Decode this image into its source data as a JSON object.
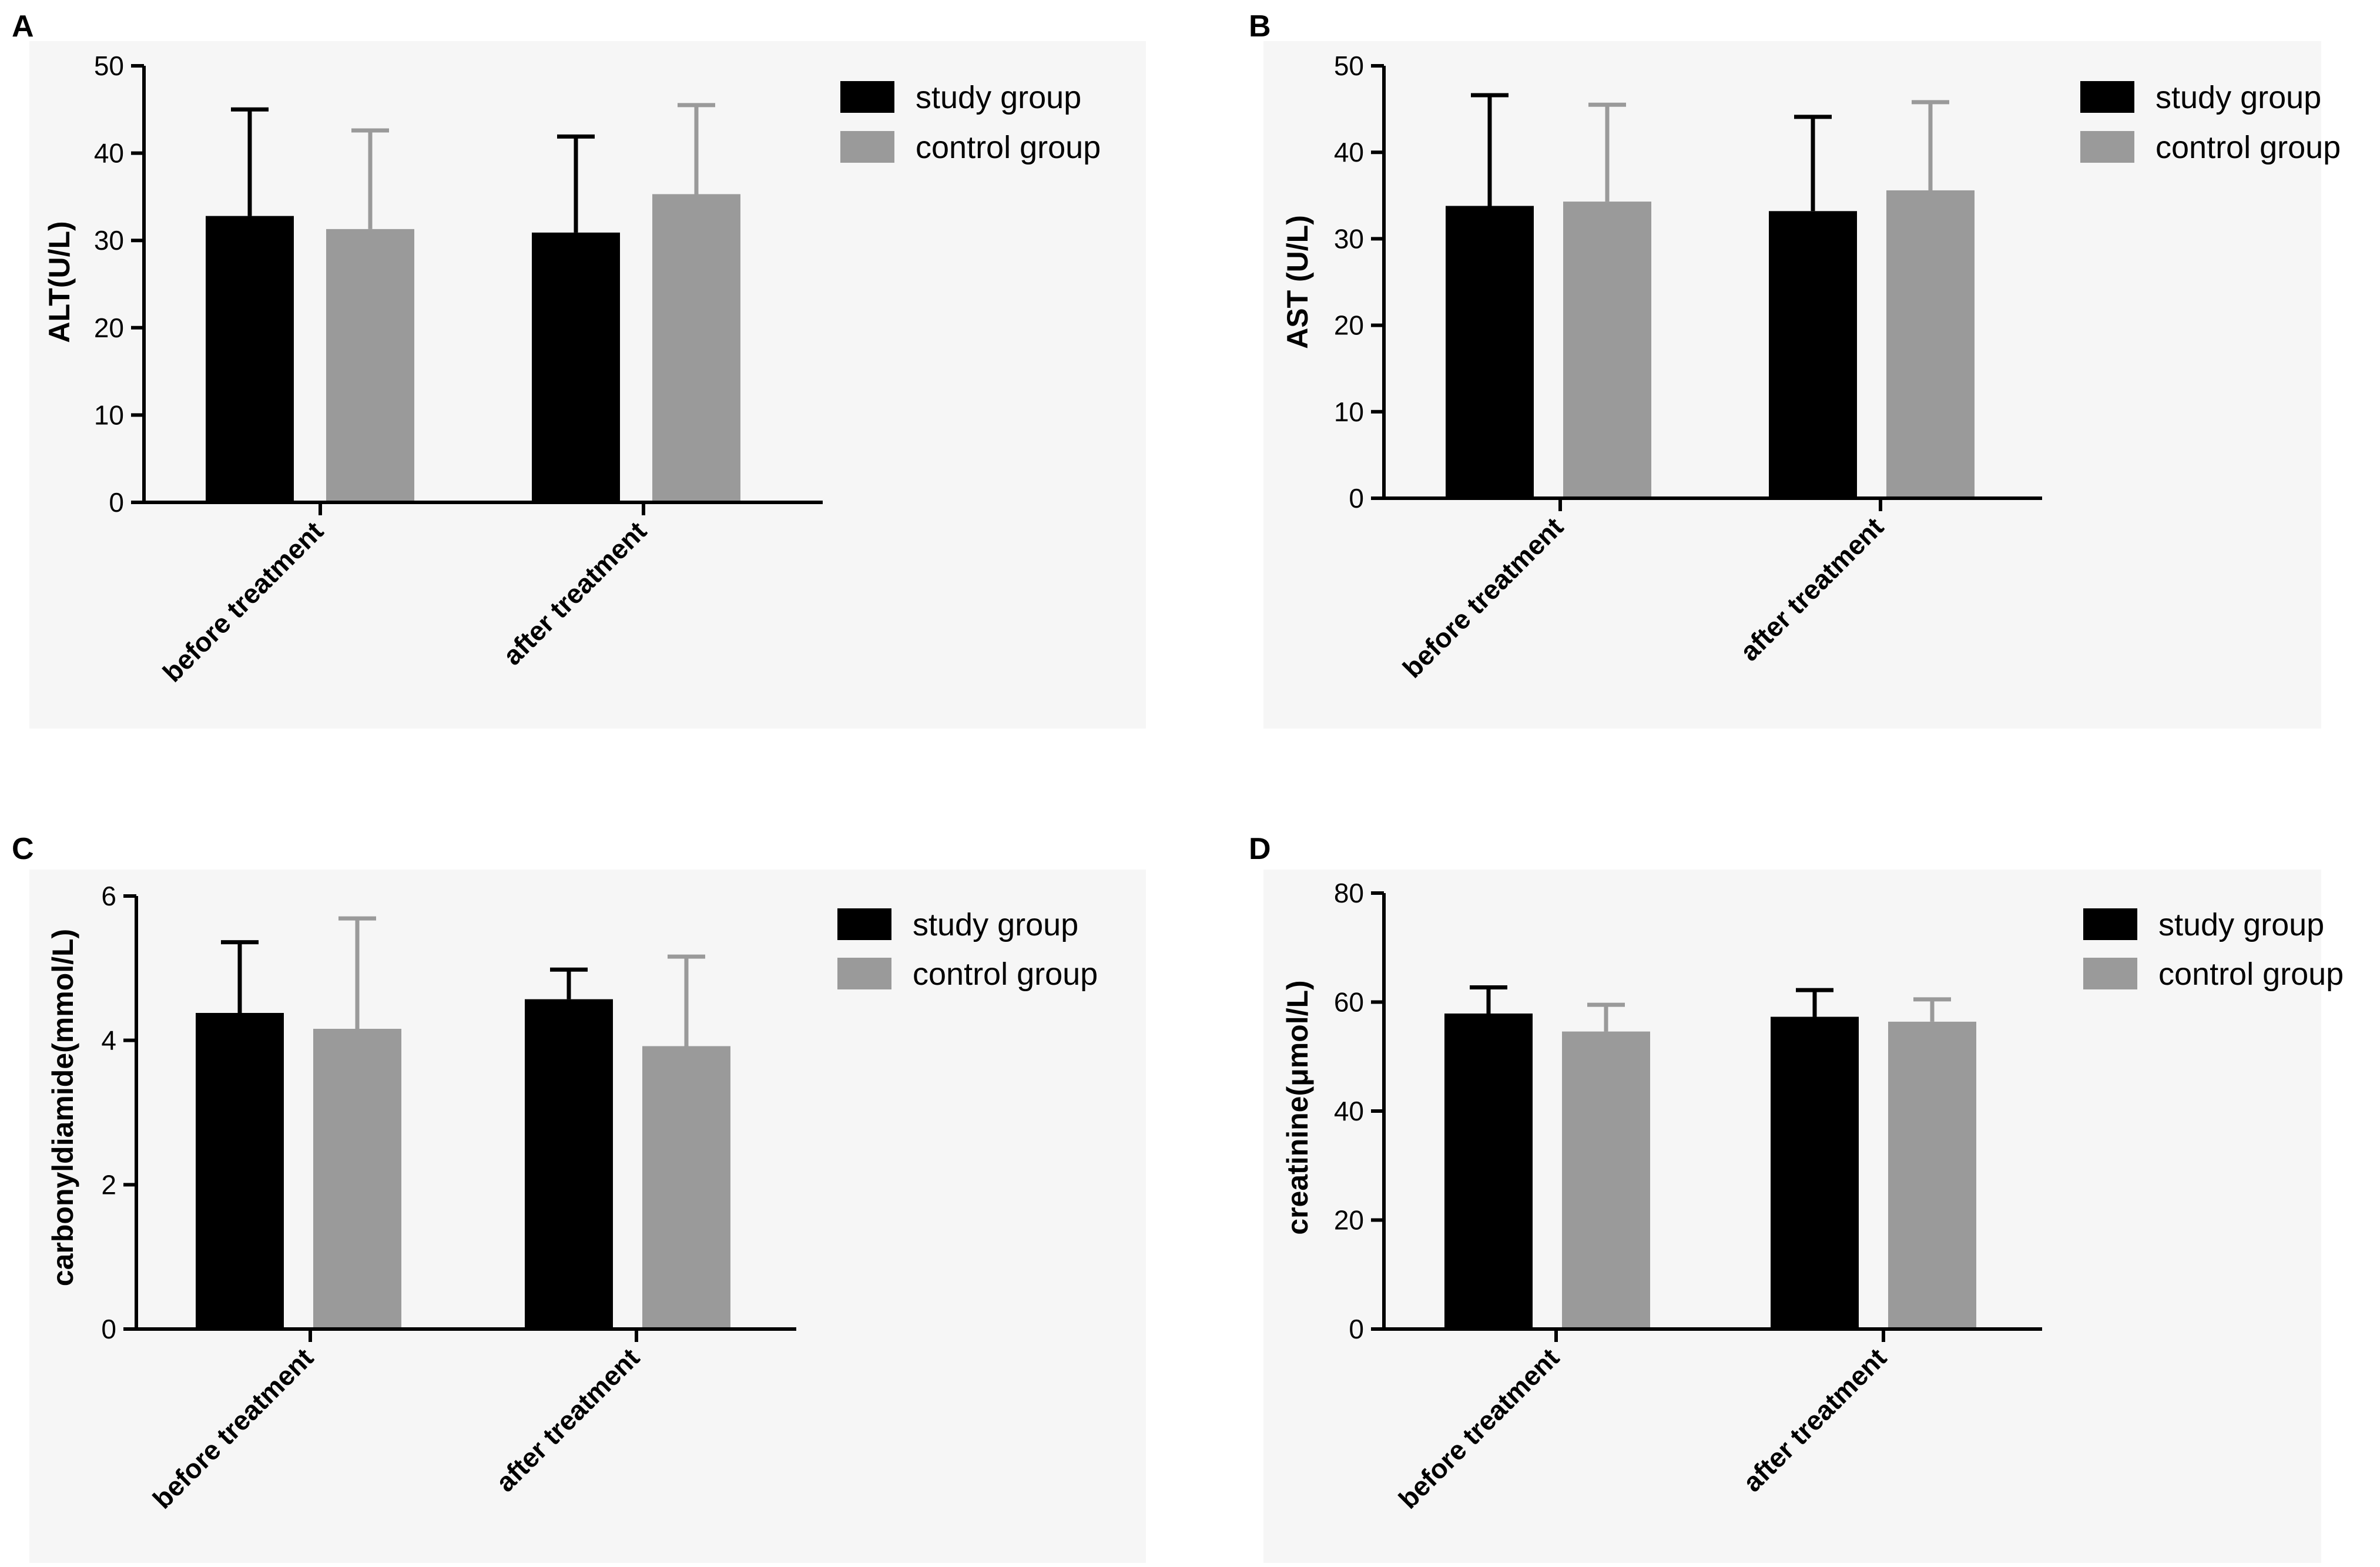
{
  "colors": {
    "study": "#000000",
    "control": "#9a9a9a",
    "axis": "#000000",
    "panel_bg": "#f6f6f6"
  },
  "chart_data": [
    {
      "panel": "A",
      "type": "bar",
      "categories": [
        "before treatment",
        "after treatment"
      ],
      "series": [
        {
          "name": "study group",
          "values": [
            32.8,
            30.9
          ],
          "errors": [
            12.2,
            11.0
          ]
        },
        {
          "name": "control group",
          "values": [
            31.3,
            35.3
          ],
          "errors": [
            11.3,
            10.2
          ]
        }
      ],
      "ylabel": "ALT(U/L)",
      "ylim": [
        0,
        50
      ],
      "yticks": [
        0,
        10,
        20,
        30,
        40,
        50
      ],
      "legend_position": "top-right",
      "grid": false
    },
    {
      "panel": "B",
      "type": "bar",
      "categories": [
        "before treatment",
        "after treatment"
      ],
      "series": [
        {
          "name": "study group",
          "values": [
            33.8,
            33.2
          ],
          "errors": [
            12.8,
            10.9
          ]
        },
        {
          "name": "control group",
          "values": [
            34.3,
            35.6
          ],
          "errors": [
            11.2,
            10.2
          ]
        }
      ],
      "ylabel": "AST (U/L)",
      "ylim": [
        0,
        50
      ],
      "yticks": [
        0,
        10,
        20,
        30,
        40,
        50
      ],
      "legend_position": "top-right",
      "grid": false
    },
    {
      "panel": "C",
      "type": "bar",
      "categories": [
        "before treatment",
        "after treatment"
      ],
      "series": [
        {
          "name": "study group",
          "values": [
            4.38,
            4.57
          ],
          "errors": [
            0.98,
            0.41
          ]
        },
        {
          "name": "control group",
          "values": [
            4.16,
            3.92
          ],
          "errors": [
            1.53,
            1.24
          ]
        }
      ],
      "ylabel": "carbonyldiamide(mmol/L)",
      "ylim": [
        0,
        6
      ],
      "yticks": [
        0,
        2,
        4,
        6
      ],
      "legend_position": "top-right",
      "grid": false
    },
    {
      "panel": "D",
      "type": "bar",
      "categories": [
        "before treatment",
        "after treatment"
      ],
      "series": [
        {
          "name": "study group",
          "values": [
            57.9,
            57.3
          ],
          "errors": [
            4.8,
            4.9
          ]
        },
        {
          "name": "control group",
          "values": [
            54.6,
            56.4
          ],
          "errors": [
            4.9,
            4.1
          ]
        }
      ],
      "ylabel": "creatinine(μmol/L)",
      "ylim": [
        0,
        80
      ],
      "yticks": [
        0,
        20,
        40,
        60,
        80
      ],
      "legend_position": "top-right",
      "grid": false
    }
  ]
}
